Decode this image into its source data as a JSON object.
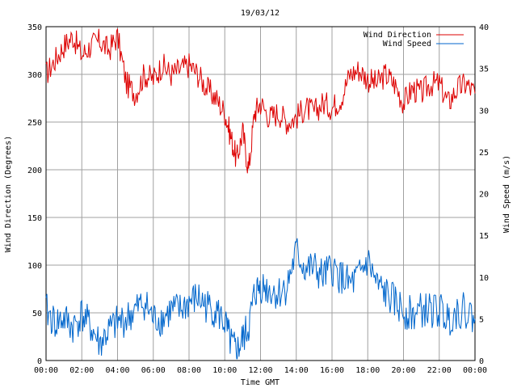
{
  "chart_data": {
    "type": "line",
    "title": "19/03/12",
    "xlabel": "Time GMT",
    "ylabel_left": "Wind Direction (Degrees)",
    "ylabel_right": "Wind Speed (m/s)",
    "grid": true,
    "legend_position": "top-right",
    "x_range": [
      "00:00",
      "24:00"
    ],
    "x_ticks": [
      "00:00",
      "02:00",
      "04:00",
      "06:00",
      "08:00",
      "10:00",
      "12:00",
      "14:00",
      "16:00",
      "18:00",
      "20:00",
      "22:00",
      "00:00"
    ],
    "y_left": {
      "range": [
        0,
        350
      ],
      "ticks": [
        "0",
        "50",
        "100",
        "150",
        "200",
        "250",
        "300",
        "350"
      ]
    },
    "y_right": {
      "range": [
        0,
        40
      ],
      "ticks": [
        "0",
        "5",
        "10",
        "15",
        "20",
        "25",
        "30",
        "35",
        "40"
      ]
    },
    "series": [
      {
        "name": "Wind Direction",
        "axis": "left",
        "color": "#dd0000",
        "x": [
          "00:00",
          "00:30",
          "01:00",
          "01:30",
          "02:00",
          "02:30",
          "03:00",
          "03:30",
          "04:00",
          "04:30",
          "05:00",
          "05:30",
          "06:00",
          "06:30",
          "07:00",
          "07:30",
          "08:00",
          "08:30",
          "09:00",
          "09:30",
          "10:00",
          "10:20",
          "10:40",
          "11:00",
          "11:20",
          "11:40",
          "12:00",
          "12:30",
          "13:00",
          "13:30",
          "14:00",
          "14:30",
          "15:00",
          "15:30",
          "16:00",
          "16:30",
          "17:00",
          "17:30",
          "18:00",
          "18:30",
          "19:00",
          "19:30",
          "20:00",
          "20:30",
          "21:00",
          "21:30",
          "22:00",
          "22:30",
          "23:00",
          "23:30",
          "24:00"
        ],
        "values": [
          300,
          315,
          330,
          340,
          320,
          330,
          335,
          325,
          340,
          290,
          280,
          300,
          295,
          310,
          300,
          305,
          310,
          300,
          285,
          275,
          260,
          235,
          210,
          240,
          200,
          260,
          270,
          255,
          260,
          250,
          255,
          265,
          260,
          270,
          265,
          275,
          300,
          305,
          295,
          290,
          300,
          290,
          270,
          285,
          280,
          290,
          290,
          270,
          285,
          290,
          280
        ]
      },
      {
        "name": "Wind Speed",
        "axis": "right",
        "color": "#0066cc",
        "x": [
          "00:00",
          "00:30",
          "01:00",
          "01:30",
          "02:00",
          "02:30",
          "03:00",
          "03:30",
          "04:00",
          "04:30",
          "05:00",
          "05:30",
          "06:00",
          "06:30",
          "07:00",
          "07:30",
          "08:00",
          "08:30",
          "09:00",
          "09:30",
          "10:00",
          "10:20",
          "10:40",
          "11:00",
          "11:20",
          "11:40",
          "12:00",
          "12:30",
          "13:00",
          "13:30",
          "14:00",
          "14:30",
          "15:00",
          "15:30",
          "16:00",
          "16:30",
          "17:00",
          "17:30",
          "18:00",
          "18:30",
          "19:00",
          "19:30",
          "20:00",
          "20:30",
          "21:00",
          "21:30",
          "22:00",
          "22:30",
          "23:00",
          "23:30",
          "24:00"
        ],
        "values": [
          6,
          4.5,
          5,
          4,
          5.5,
          4,
          2,
          3.5,
          4.5,
          5,
          6,
          7,
          5,
          5,
          6,
          6,
          7,
          7.5,
          6.5,
          6,
          4.5,
          2,
          1,
          2.5,
          4,
          8,
          9,
          8.5,
          8,
          9,
          13,
          11,
          11,
          10,
          11,
          10,
          9,
          10,
          12,
          9,
          8,
          7,
          6,
          5.5,
          6,
          6,
          6,
          5,
          6,
          6,
          5
        ]
      }
    ]
  }
}
